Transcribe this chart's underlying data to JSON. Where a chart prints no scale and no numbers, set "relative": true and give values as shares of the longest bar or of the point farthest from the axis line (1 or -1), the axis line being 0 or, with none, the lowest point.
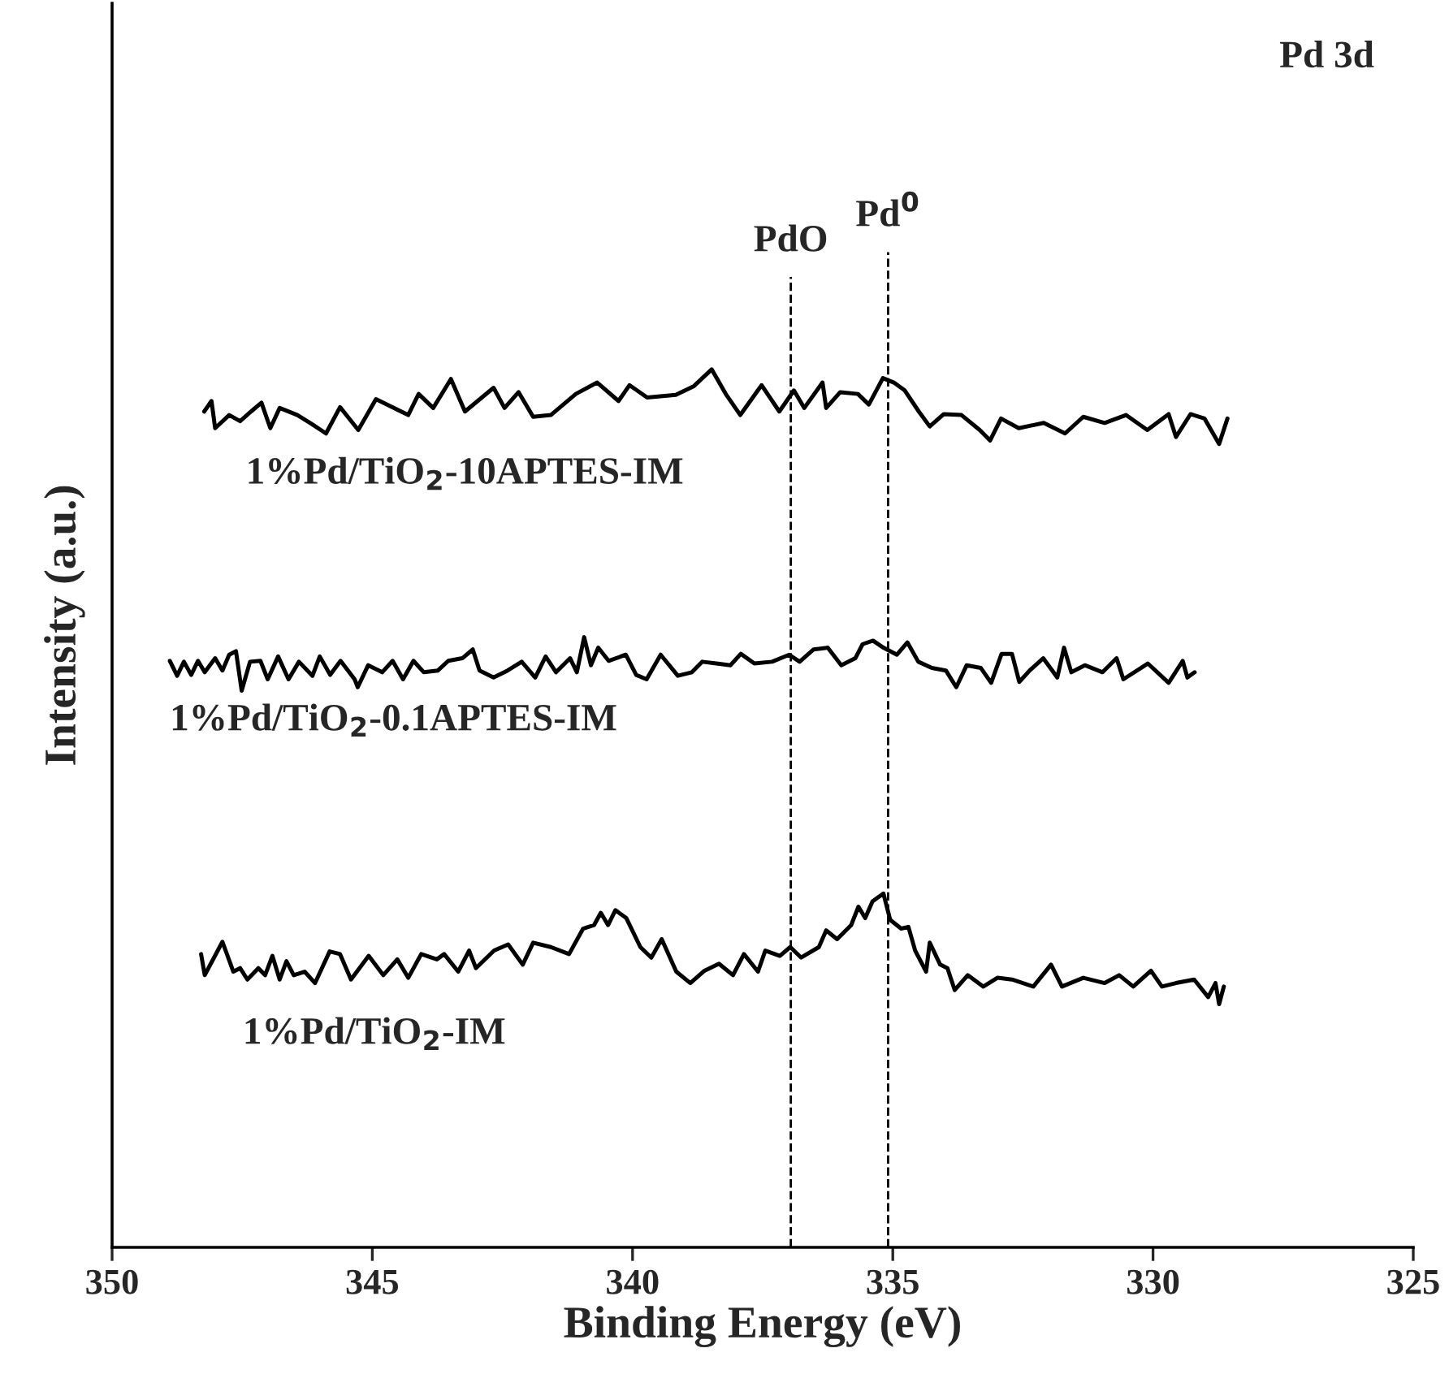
{
  "chart_data": {
    "type": "line",
    "relative": true,
    "xlabel": "Binding Energy (eV)",
    "ylabel": "Intensity (a.u.)",
    "xlim": [
      350,
      325
    ],
    "xticks": [
      350,
      345,
      340,
      335,
      330,
      325
    ],
    "grid": false,
    "legend": false,
    "marker": "none",
    "line_style": "solid",
    "annotations": [
      "Pd 3d"
    ],
    "ref_lines": [
      {
        "axis": "x",
        "value": 336.96,
        "label": "PdO",
        "color": "#000000",
        "line_style": "dashed"
      },
      {
        "axis": "x",
        "value": 335.09,
        "label": "Pd$^{0}$",
        "color": "#000000",
        "line_style": "dashed"
      }
    ],
    "series": [
      {
        "name": "1%Pd/TiO$_{2}$-10APTES-IM",
        "color": "#000000",
        "x": [
          348.23,
          348.09,
          348.02,
          347.75,
          347.54,
          347.33,
          347.13,
          346.96,
          346.78,
          346.44,
          346.17,
          345.89,
          345.62,
          345.27,
          344.93,
          344.31,
          344.11,
          343.83,
          343.49,
          343.22,
          342.67,
          342.46,
          342.19,
          341.91,
          341.57,
          341.09,
          340.68,
          340.27,
          340.06,
          339.72,
          339.17,
          338.82,
          338.48,
          338.21,
          337.93,
          337.52,
          337.18,
          336.9,
          336.7,
          336.35,
          336.28,
          336.01,
          335.67,
          335.46,
          335.19,
          334.98,
          334.77,
          334.5,
          334.29,
          334.02,
          333.68,
          333.33,
          333.13,
          332.92,
          332.58,
          332.1,
          331.69,
          331.34,
          330.93,
          330.52,
          330.11,
          329.7,
          329.56,
          329.28,
          329.01,
          328.73,
          328.57
        ],
        "values": [
          0.952,
          0.964,
          0.933,
          0.948,
          0.941,
          0.952,
          0.962,
          0.933,
          0.956,
          0.948,
          0.938,
          0.927,
          0.957,
          0.931,
          0.966,
          0.948,
          0.972,
          0.956,
          0.989,
          0.952,
          0.979,
          0.956,
          0.974,
          0.946,
          0.948,
          0.972,
          0.985,
          0.964,
          0.982,
          0.968,
          0.971,
          0.981,
          1,
          0.972,
          0.948,
          0.982,
          0.952,
          0.976,
          0.956,
          0.985,
          0.956,
          0.974,
          0.972,
          0.96,
          0.99,
          0.985,
          0.976,
          0.952,
          0.935,
          0.949,
          0.948,
          0.931,
          0.919,
          0.944,
          0.933,
          0.939,
          0.927,
          0.946,
          0.939,
          0.948,
          0.931,
          0.949,
          0.923,
          0.949,
          0.944,
          0.915,
          0.944
        ]
      },
      {
        "name": "1%Pd/TiO$_{2}$-0.1APTES-IM",
        "color": "#000000",
        "x": [
          348.89,
          348.75,
          348.62,
          348.48,
          348.35,
          348.22,
          348.02,
          347.88,
          347.75,
          347.62,
          347.51,
          347.35,
          347.15,
          347.01,
          346.81,
          346.61,
          346.41,
          346.15,
          346.01,
          345.81,
          345.61,
          345.34,
          345.28,
          345.08,
          344.81,
          344.61,
          344.41,
          344.21,
          344.01,
          343.74,
          343.54,
          343.27,
          343.07,
          342.94,
          342.67,
          342.4,
          342.13,
          341.87,
          341.67,
          341.47,
          341.2,
          341.07,
          340.93,
          340.8,
          340.66,
          340.46,
          340.13,
          339.93,
          339.73,
          339.46,
          339.13,
          338.86,
          338.66,
          338.39,
          338.12,
          337.92,
          337.66,
          337.32,
          336.99,
          336.79,
          336.52,
          336.25,
          335.99,
          335.72,
          335.58,
          335.38,
          335.18,
          334.92,
          334.72,
          334.51,
          334.25,
          333.98,
          333.78,
          333.58,
          333.31,
          333.11,
          332.91,
          332.71,
          332.57,
          332.37,
          332.11,
          331.84,
          331.71,
          331.57,
          331.31,
          330.97,
          330.7,
          330.57,
          330.1,
          329.7,
          329.43,
          329.34,
          329.2
        ],
        "values": [
          0.668,
          0.651,
          0.667,
          0.652,
          0.668,
          0.655,
          0.671,
          0.657,
          0.675,
          0.679,
          0.634,
          0.667,
          0.668,
          0.647,
          0.673,
          0.647,
          0.667,
          0.651,
          0.673,
          0.652,
          0.668,
          0.647,
          0.638,
          0.663,
          0.655,
          0.668,
          0.647,
          0.668,
          0.655,
          0.657,
          0.668,
          0.671,
          0.681,
          0.657,
          0.649,
          0.657,
          0.667,
          0.649,
          0.673,
          0.655,
          0.671,
          0.655,
          0.695,
          0.663,
          0.683,
          0.668,
          0.675,
          0.652,
          0.647,
          0.675,
          0.651,
          0.655,
          0.667,
          0.665,
          0.663,
          0.676,
          0.665,
          0.667,
          0.675,
          0.667,
          0.681,
          0.683,
          0.663,
          0.671,
          0.687,
          0.691,
          0.683,
          0.675,
          0.689,
          0.667,
          0.66,
          0.657,
          0.638,
          0.663,
          0.66,
          0.643,
          0.676,
          0.676,
          0.644,
          0.657,
          0.671,
          0.649,
          0.683,
          0.655,
          0.663,
          0.655,
          0.671,
          0.647,
          0.665,
          0.643,
          0.668,
          0.649,
          0.655
        ]
      },
      {
        "name": "1%Pd/TiO$_{2}$-IM",
        "color": "#000000",
        "x": [
          348.29,
          348.22,
          347.88,
          347.67,
          347.54,
          347.4,
          347.19,
          347.06,
          346.92,
          346.78,
          346.65,
          346.51,
          346.3,
          346.1,
          345.82,
          345.62,
          345.41,
          345.07,
          344.79,
          344.52,
          344.31,
          344.06,
          343.76,
          343.62,
          343.35,
          343.14,
          343.01,
          342.66,
          342.39,
          342.11,
          341.91,
          341.57,
          341.22,
          340.95,
          340.74,
          340.61,
          340.47,
          340.33,
          340.12,
          339.85,
          339.64,
          339.44,
          339.16,
          338.89,
          338.62,
          338.34,
          338.07,
          337.86,
          337.59,
          337.45,
          337.17,
          336.97,
          336.76,
          336.42,
          336.28,
          336.07,
          335.8,
          335.66,
          335.53,
          335.39,
          335.18,
          335.05,
          334.84,
          334.7,
          334.57,
          334.36,
          334.29,
          334.09,
          333.95,
          333.81,
          333.56,
          333.26,
          332.99,
          332.71,
          332.3,
          331.96,
          331.75,
          331.34,
          330.93,
          330.65,
          330.38,
          330.04,
          329.83,
          329.56,
          329.21,
          328.94,
          328.8,
          328.73,
          328.64
        ],
        "values": [
          0.334,
          0.31,
          0.348,
          0.314,
          0.318,
          0.305,
          0.318,
          0.31,
          0.332,
          0.305,
          0.326,
          0.31,
          0.314,
          0.301,
          0.337,
          0.334,
          0.305,
          0.332,
          0.31,
          0.328,
          0.307,
          0.334,
          0.328,
          0.334,
          0.314,
          0.338,
          0.318,
          0.338,
          0.345,
          0.322,
          0.347,
          0.342,
          0.334,
          0.363,
          0.367,
          0.381,
          0.367,
          0.384,
          0.375,
          0.342,
          0.33,
          0.351,
          0.314,
          0.301,
          0.315,
          0.323,
          0.31,
          0.334,
          0.314,
          0.338,
          0.332,
          0.342,
          0.33,
          0.342,
          0.361,
          0.351,
          0.367,
          0.388,
          0.375,
          0.394,
          0.403,
          0.373,
          0.363,
          0.365,
          0.338,
          0.314,
          0.347,
          0.322,
          0.318,
          0.293,
          0.31,
          0.297,
          0.307,
          0.305,
          0.297,
          0.322,
          0.297,
          0.307,
          0.301,
          0.31,
          0.297,
          0.315,
          0.297,
          0.301,
          0.305,
          0.285,
          0.301,
          0.277,
          0.297
        ]
      }
    ]
  }
}
